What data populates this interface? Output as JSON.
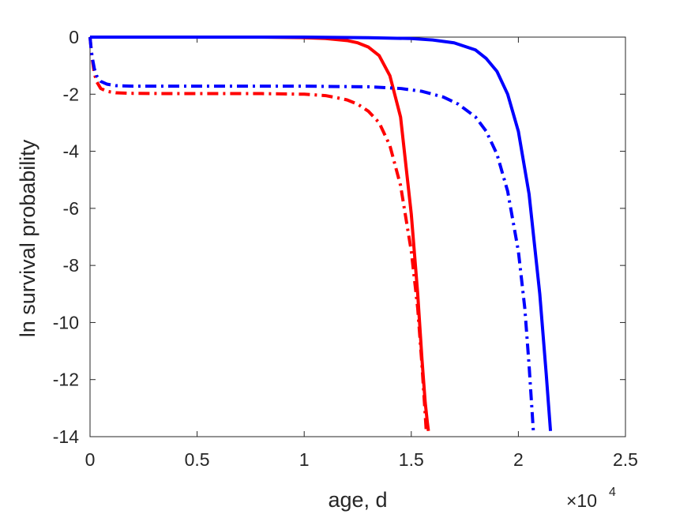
{
  "chart_data": {
    "type": "line",
    "title": "",
    "xlabel": "age, d",
    "ylabel": "ln survival probability",
    "x_exponent_label": {
      "base": "×10",
      "exponent": "4"
    },
    "xlim": [
      0,
      2.5
    ],
    "ylim": [
      -14,
      0
    ],
    "x_ticks": [
      0,
      0.5,
      1,
      1.5,
      2,
      2.5
    ],
    "x_tick_labels": [
      "0",
      "0.5",
      "1",
      "1.5",
      "2",
      "2.5"
    ],
    "y_ticks": [
      0,
      -2,
      -4,
      -6,
      -8,
      -10,
      -12,
      -14
    ],
    "y_tick_labels": [
      "0",
      "-2",
      "-4",
      "-6",
      "-8",
      "-10",
      "-12",
      "-14"
    ],
    "grid": false,
    "series": [
      {
        "color": "#ff0000",
        "style": "solid",
        "x": [
          0,
          0.2,
          0.4,
          0.6,
          0.8,
          1.0,
          1.1,
          1.2,
          1.25,
          1.3,
          1.35,
          1.4,
          1.45,
          1.5,
          1.53,
          1.55,
          1.565,
          1.575,
          1.58
        ],
        "y": [
          0,
          0,
          0,
          0,
          0,
          -0.02,
          -0.05,
          -0.12,
          -0.2,
          -0.35,
          -0.65,
          -1.35,
          -2.8,
          -6.2,
          -9.0,
          -11.3,
          -12.8,
          -13.5,
          -13.8
        ]
      },
      {
        "color": "#ff0000",
        "style": "dashdot",
        "x": [
          0,
          0.005,
          0.01,
          0.02,
          0.03,
          0.05,
          0.08,
          0.12,
          0.2,
          0.4,
          0.6,
          0.8,
          1.0,
          1.1,
          1.15,
          1.2,
          1.25,
          1.3,
          1.35,
          1.4,
          1.45,
          1.5,
          1.53,
          1.55,
          1.57
        ],
        "y": [
          0,
          -0.4,
          -0.75,
          -1.25,
          -1.55,
          -1.8,
          -1.9,
          -1.95,
          -1.97,
          -1.98,
          -1.98,
          -1.98,
          -2.0,
          -2.05,
          -2.12,
          -2.2,
          -2.35,
          -2.6,
          -3.0,
          -3.8,
          -5.2,
          -7.5,
          -9.5,
          -11.5,
          -13.8
        ]
      },
      {
        "color": "#0000ff",
        "style": "solid",
        "x": [
          0,
          0.5,
          1.0,
          1.3,
          1.5,
          1.6,
          1.7,
          1.8,
          1.85,
          1.9,
          1.95,
          2.0,
          2.05,
          2.1,
          2.13,
          2.15
        ],
        "y": [
          0,
          0,
          0,
          -0.02,
          -0.05,
          -0.1,
          -0.2,
          -0.45,
          -0.75,
          -1.2,
          -2.0,
          -3.3,
          -5.5,
          -9.0,
          -11.8,
          -13.8
        ]
      },
      {
        "color": "#0000ff",
        "style": "dashdot",
        "x": [
          0,
          0.005,
          0.01,
          0.02,
          0.03,
          0.05,
          0.08,
          0.12,
          0.2,
          0.5,
          1.0,
          1.3,
          1.45,
          1.55,
          1.65,
          1.72,
          1.8,
          1.85,
          1.9,
          1.95,
          2.0,
          2.03,
          2.05,
          2.07
        ],
        "y": [
          0,
          -0.4,
          -0.7,
          -1.1,
          -1.35,
          -1.55,
          -1.65,
          -1.7,
          -1.72,
          -1.72,
          -1.72,
          -1.74,
          -1.8,
          -1.9,
          -2.1,
          -2.35,
          -2.8,
          -3.3,
          -4.1,
          -5.4,
          -7.5,
          -9.5,
          -11.5,
          -13.8
        ]
      }
    ]
  }
}
